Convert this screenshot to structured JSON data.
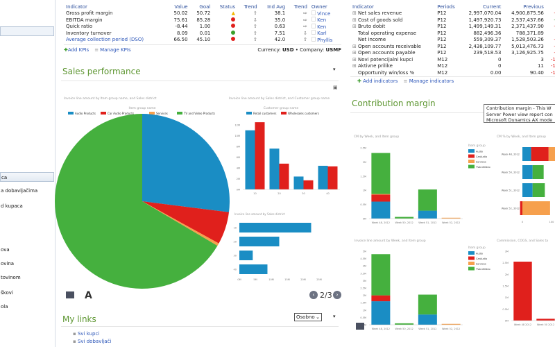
{
  "colors": {
    "audio": "#1a8dc4",
    "car": "#e0201c",
    "services": "#f6a04d",
    "tv": "#45b03e",
    "accent": "#5d9631",
    "link": "#2b55b8"
  },
  "sidebar": {
    "items": [
      {
        "label": "ca",
        "selected": true
      },
      {
        "label": "a dobavljačima"
      },
      {
        "label": "d kupaca"
      },
      {
        "label": "ova"
      },
      {
        "label": "ovina"
      },
      {
        "label": "tovinom"
      },
      {
        "label": "škovi"
      },
      {
        "label": "ola"
      }
    ]
  },
  "kpi": {
    "headers": [
      "Indicator",
      "Value",
      "Goal",
      "Status",
      "Trend",
      "Ind Avg",
      "Trend",
      "Owner"
    ],
    "rows": [
      {
        "indicator": "Gross profit margin",
        "value": "50.02",
        "goal": "50.72",
        "status": "warning",
        "trend": "up",
        "ind_avg": "38.1",
        "trend2": "right",
        "owner": "Vince",
        "link": false
      },
      {
        "indicator": "EBITDA margin",
        "value": "75.61",
        "goal": "85.28",
        "status": "bad",
        "trend": "down",
        "ind_avg": "35.0",
        "trend2": "right",
        "owner": "Ken",
        "link": false
      },
      {
        "indicator": "Quick ratio",
        "value": "-8.44",
        "goal": "1.00",
        "status": "bad",
        "trend": "up",
        "ind_avg": "0.63",
        "trend2": "right",
        "owner": "Ken",
        "link": false
      },
      {
        "indicator": "Inventory turnover",
        "value": "8.09",
        "goal": "0.01",
        "status": "good",
        "trend": "up",
        "ind_avg": "7.51",
        "trend2": "down",
        "owner": "Karl",
        "link": false
      },
      {
        "indicator": "Average collection period (DSO)",
        "value": "66.50",
        "goal": "45.10",
        "status": "bad",
        "trend": "up",
        "ind_avg": "42.0",
        "trend2": "up",
        "owner": "Phyllis",
        "link": true
      }
    ],
    "add_label": "Add KPIs",
    "manage_label": "Manage KPIs",
    "currency_label": "Currency:",
    "currency": "USD",
    "company_label": "Company:",
    "company": "USMF"
  },
  "indicators": {
    "headers": [
      "Indicator",
      "Periods",
      "Current",
      "Previous",
      "Ch"
    ],
    "rows": [
      {
        "name": "Net sales revenue",
        "period": "P12",
        "current": "2,997,070.04",
        "previous": "4,900,875.56",
        "change": "-38.",
        "positive": false,
        "expand": true
      },
      {
        "name": "Cost of goods sold",
        "period": "P12",
        "current": "1,497,920.73",
        "previous": "2,537,437.66",
        "change": "-40.",
        "positive": true,
        "expand": true
      },
      {
        "name": "Bruto dobit",
        "period": "P12",
        "current": "1,499,149.31",
        "previous": "2,371,437.90",
        "change": "-36.",
        "positive": false,
        "expand": true
      },
      {
        "name": "Total operating expense",
        "period": "P12",
        "current": "882,496.36",
        "previous": "788,371.89",
        "change": "11.",
        "positive": false,
        "expand": false
      },
      {
        "name": "Net income",
        "period": "P12",
        "current": "559,309.37",
        "previous": "1,528,503.26",
        "change": "-63.",
        "positive": false,
        "expand": false
      },
      {
        "name": "Open accounts receivable",
        "period": "P12",
        "current": "2,438,109.77",
        "previous": "5,013,476.73",
        "change": "-51.",
        "positive": false,
        "expand": true
      },
      {
        "name": "Open accounts payable",
        "period": "P12",
        "current": "239,518.53",
        "previous": "3,126,925.75",
        "change": "-92.",
        "positive": false,
        "expand": true
      },
      {
        "name": "Novi potencijalni kupci",
        "period": "M12",
        "current": "0",
        "previous": "3",
        "change": "-100.",
        "positive": false,
        "expand": true
      },
      {
        "name": "Aktivne prilike",
        "period": "M12",
        "current": "0",
        "previous": "11",
        "change": "-100.",
        "positive": false,
        "expand": true
      },
      {
        "name": "Opportunity win/loss %",
        "period": "M12",
        "current": "0.00",
        "previous": "90.40",
        "change": "-100.",
        "positive": false,
        "expand": false
      }
    ],
    "add_label": "Add indicators",
    "manage_label": "Manage indicators"
  },
  "sales": {
    "title": "Sales performance",
    "pager": "2/3",
    "format_icon": "A"
  },
  "contribution": {
    "title": "Contribution margin",
    "tooltip": [
      "Contribution margin - This W",
      "Server Power view report con",
      "Microsoft Dynamics AX mode"
    ]
  },
  "links": {
    "title": "My links",
    "select_value": "Osobno",
    "items": [
      "Svi kupci",
      "Svi dobavljači"
    ]
  },
  "chart_data": [
    {
      "id": "pie",
      "type": "pie",
      "title": "Invoice line amount by Item group name, and Sales district",
      "legend_title": "Item group name",
      "legend_position": "top",
      "categories": [
        "Audio Products",
        "Car Audio Products",
        "Services",
        "TV and Video Products"
      ],
      "values": [
        27,
        6,
        0.5,
        66.5
      ]
    },
    {
      "id": "col",
      "type": "bar",
      "title": "Invoice line amount by Sales district, and Customer group name",
      "legend_title": "Customer group name",
      "legend_position": "top",
      "categories": [
        "10",
        "20",
        "30",
        "40"
      ],
      "ylim": [
        0,
        12
      ],
      "yticks": [
        "0M",
        "2M",
        "4M",
        "6M",
        "8M",
        "10M",
        "12M"
      ],
      "series": [
        {
          "name": "Retail customers",
          "values": [
            11,
            7.6,
            2.4,
            4.4
          ]
        },
        {
          "name": "Wholesales customers",
          "values": [
            12.5,
            4.8,
            1.7,
            4.3
          ]
        }
      ]
    },
    {
      "id": "hbar",
      "type": "bar",
      "orientation": "horizontal",
      "title": "Invoice line amount by Sales district",
      "categories": [
        "10",
        "20",
        "30",
        "40"
      ],
      "xlim": [
        0,
        25
      ],
      "xticks": [
        "0M",
        "5M",
        "10M",
        "15M",
        "20M",
        "25M"
      ],
      "values": [
        22.5,
        12.5,
        4.2,
        8.8
      ]
    },
    {
      "id": "cm",
      "type": "bar",
      "stacked": true,
      "title": "CM by Week, and Item group",
      "legend_title": "Item group",
      "legend_position": "right",
      "categories": [
        "Week 48, 2012",
        "Week 50, 2012",
        "Week 51, 2012",
        "Week 52, 2012"
      ],
      "ylim": [
        0,
        2.5
      ],
      "yticks": [
        "0M",
        "0.5M",
        "1M",
        "1.5M",
        "2M",
        "2.5M"
      ],
      "series": [
        {
          "name": "Audio",
          "values": [
            0.6,
            0,
            0.28,
            0
          ]
        },
        {
          "name": "CarAudio",
          "values": [
            0.25,
            0,
            0,
            0
          ]
        },
        {
          "name": "Services",
          "values": [
            0.02,
            0,
            0,
            0.03
          ]
        },
        {
          "name": "TVandVideo",
          "values": [
            1.45,
            0.06,
            0.75,
            0
          ]
        }
      ]
    },
    {
      "id": "cmpct",
      "type": "bar",
      "orientation": "horizontal",
      "stacked": true,
      "title": "CM % by Week, and Item group",
      "categories": [
        "Week 48, 2012",
        "Week 50, 2012",
        "Week 51, 2012",
        "Week 52, 2012"
      ],
      "xticks": [
        "0",
        "100"
      ],
      "series": [
        {
          "name": "Audio",
          "values": [
            30,
            35,
            35,
            0
          ]
        },
        {
          "name": "CarAudio",
          "values": [
            60,
            0,
            0,
            -8
          ]
        },
        {
          "name": "Services",
          "values": [
            40,
            0,
            0,
            95
          ]
        },
        {
          "name": "TVandVideo",
          "values": [
            0,
            38,
            42,
            0
          ]
        }
      ]
    },
    {
      "id": "inv",
      "type": "bar",
      "stacked": true,
      "title": "Invoice line amount by Week, and Item group",
      "legend_title": "Item group",
      "legend_position": "right",
      "categories": [
        "Week 48, 2012",
        "Week 50, 2012",
        "Week 51, 2012",
        "Week 52, 2012"
      ],
      "ylim": [
        0,
        5
      ],
      "yticks": [
        "0M",
        "0.5M",
        "1M",
        "1.5M",
        "2M",
        "2.5M",
        "3M",
        "3.5M",
        "4M",
        "4.5M",
        "5M"
      ],
      "series": [
        {
          "name": "Audio",
          "values": [
            1.6,
            0,
            0.7,
            0
          ]
        },
        {
          "name": "CarAudio",
          "values": [
            0.4,
            0,
            0,
            0
          ]
        },
        {
          "name": "Services",
          "values": [
            0,
            0,
            0,
            0.06
          ]
        },
        {
          "name": "TVandVideo",
          "values": [
            2.8,
            0.1,
            1.35,
            0
          ]
        }
      ]
    },
    {
      "id": "comm",
      "type": "bar",
      "title": "Commission, COGS, and Sales ta",
      "categories": [
        "Week 48 2012",
        "Week 50 2012",
        "W"
      ],
      "ylim": [
        0,
        3
      ],
      "yticks": [
        "0M",
        "0.5M",
        "1M",
        "1.5M",
        "2M",
        "2.5M",
        "3M"
      ],
      "values": [
        2.55,
        0.08,
        1.1
      ]
    }
  ]
}
